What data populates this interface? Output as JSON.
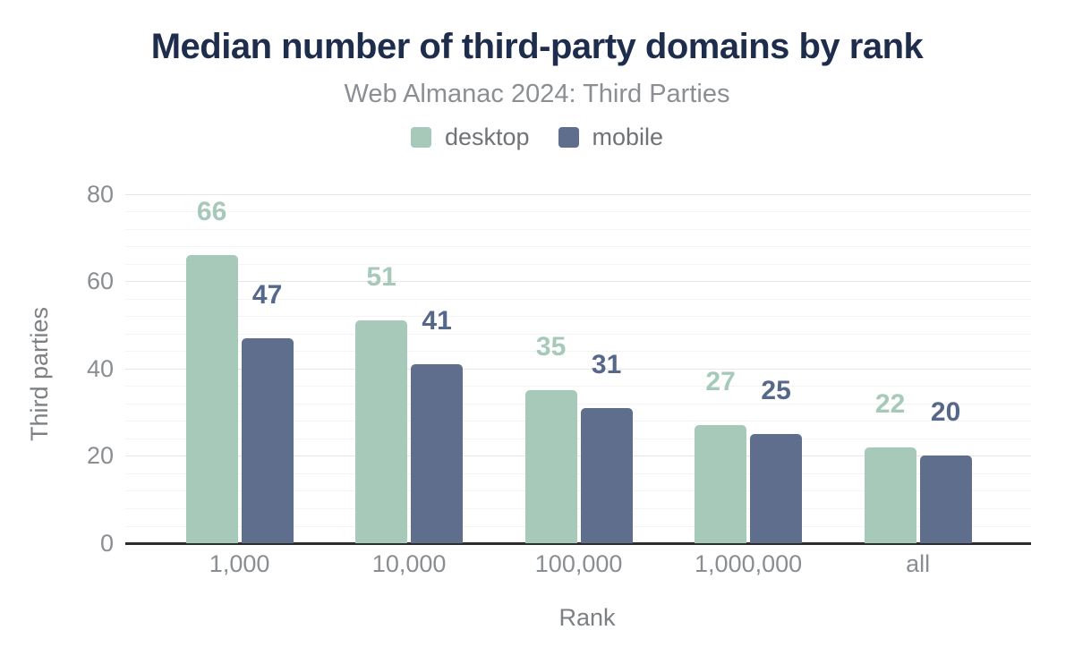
{
  "header": {
    "title": "Median number of third-party domains by rank",
    "subtitle": "Web Almanac 2024: Third Parties"
  },
  "legend": [
    {
      "label": "desktop",
      "color": "#a7c9b9"
    },
    {
      "label": "mobile",
      "color": "#5f6e8c"
    }
  ],
  "chart_data": {
    "type": "bar",
    "title": "Median number of third-party domains by rank",
    "subtitle": "Web Almanac 2024: Third Parties",
    "categories": [
      "1,000",
      "10,000",
      "100,000",
      "1,000,000",
      "all"
    ],
    "series": [
      {
        "name": "desktop",
        "color": "#a7c9b9",
        "label_color": "#a7c9b9",
        "values": [
          66,
          51,
          35,
          27,
          22
        ]
      },
      {
        "name": "mobile",
        "color": "#5f6e8c",
        "label_color": "#56688a",
        "values": [
          47,
          41,
          31,
          25,
          20
        ]
      }
    ],
    "xlabel": "Rank",
    "ylabel": "Third parties",
    "ylim": [
      0,
      80
    ],
    "yticks": [
      0,
      20,
      40,
      60,
      80
    ],
    "minor_grid_step": 4,
    "grid": true,
    "legend_position": "top",
    "data_labels": true
  },
  "colors": {
    "title": "#1e2d4b",
    "subtitle": "#8b8f94",
    "axis_text": "#8a8d91",
    "axis_title": "#7c7f83",
    "grid_major": "#e6e6e6",
    "grid_minor": "#f4f4f4",
    "baseline": "#2d2d2d",
    "background": "#ffffff"
  }
}
